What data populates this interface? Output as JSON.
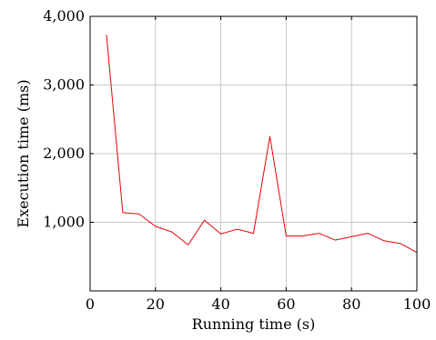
{
  "chart_data": {
    "type": "line",
    "xlabel": "Running time (s)",
    "ylabel": "Execution time (ms)",
    "xlim": [
      0,
      100
    ],
    "ylim": [
      0,
      4000
    ],
    "x_ticks": [
      0,
      20,
      40,
      60,
      80,
      100
    ],
    "y_ticks": [
      1000,
      2000,
      3000,
      4000
    ],
    "x_tick_labels": [
      "0",
      "20",
      "40",
      "60",
      "80",
      "100"
    ],
    "y_tick_labels": [
      "1,000",
      "2,000",
      "3,000",
      "4,000"
    ],
    "grid": true,
    "series": [
      {
        "color": "#e8000b",
        "x": [
          5,
          10,
          15,
          20,
          25,
          30,
          35,
          40,
          45,
          50,
          55,
          60,
          65,
          70,
          75,
          80,
          85,
          90,
          95,
          100
        ],
        "y": [
          3730,
          1140,
          1120,
          940,
          860,
          670,
          1030,
          830,
          900,
          840,
          2250,
          800,
          800,
          840,
          740,
          790,
          840,
          730,
          690,
          560
        ]
      }
    ]
  }
}
